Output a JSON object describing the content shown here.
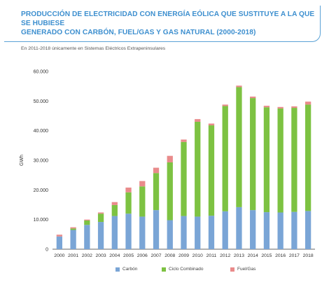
{
  "header": {
    "title_line1": "PRODUCCIÓN DE ELECTRICIDAD CON ENERGÍA EÓLICA QUE SUSTITUYE A LA QUE SE HUBIESE",
    "title_line2": "GENERADO CON CARBÓN, FUEL/GAS Y GAS NATURAL (2000-2018)",
    "subtitle": "En 2011-2018 únicamente en Sistemas Eléctricos Extrapeninsulares"
  },
  "colors": {
    "carbon": "#7aa5d6",
    "ciclo": "#7dc242",
    "fuel": "#e98b8b",
    "title": "#3d8fcf"
  },
  "chart_data": {
    "type": "bar",
    "stacked": true,
    "ylabel": "GWh",
    "xlabel": "",
    "ylim": [
      0,
      60000
    ],
    "yticks": [
      "0",
      "10.000",
      "20.000",
      "30.000",
      "40.000",
      "50.000",
      "60.000"
    ],
    "categories": [
      "2000",
      "2001",
      "2002",
      "2003",
      "2004",
      "2005",
      "2006",
      "2007",
      "2008",
      "2009",
      "2010",
      "2011",
      "2012",
      "2013",
      "2014",
      "2015",
      "2016",
      "2017",
      "2018"
    ],
    "series": [
      {
        "name": "Carbón",
        "values": [
          4300,
          6500,
          8200,
          9200,
          11200,
          12000,
          11000,
          13200,
          9800,
          11200,
          11000,
          11300,
          12800,
          14200,
          13200,
          12500,
          12400,
          12600,
          12900
        ]
      },
      {
        "name": "Ciclo Combinado",
        "values": [
          0,
          500,
          1500,
          2800,
          3700,
          7200,
          10200,
          12500,
          19500,
          25000,
          32000,
          30500,
          35500,
          40500,
          37800,
          35400,
          35100,
          35100,
          35900
        ]
      },
      {
        "name": "Fuel/Gas",
        "values": [
          600,
          400,
          300,
          400,
          1000,
          1600,
          1800,
          1800,
          2200,
          800,
          900,
          600,
          500,
          500,
          500,
          500,
          500,
          500,
          1000
        ]
      }
    ],
    "legend": [
      "Carbón",
      "Ciclo Combinado",
      "Fuel/Gas"
    ],
    "legend_position": "bottom",
    "grid": false
  }
}
